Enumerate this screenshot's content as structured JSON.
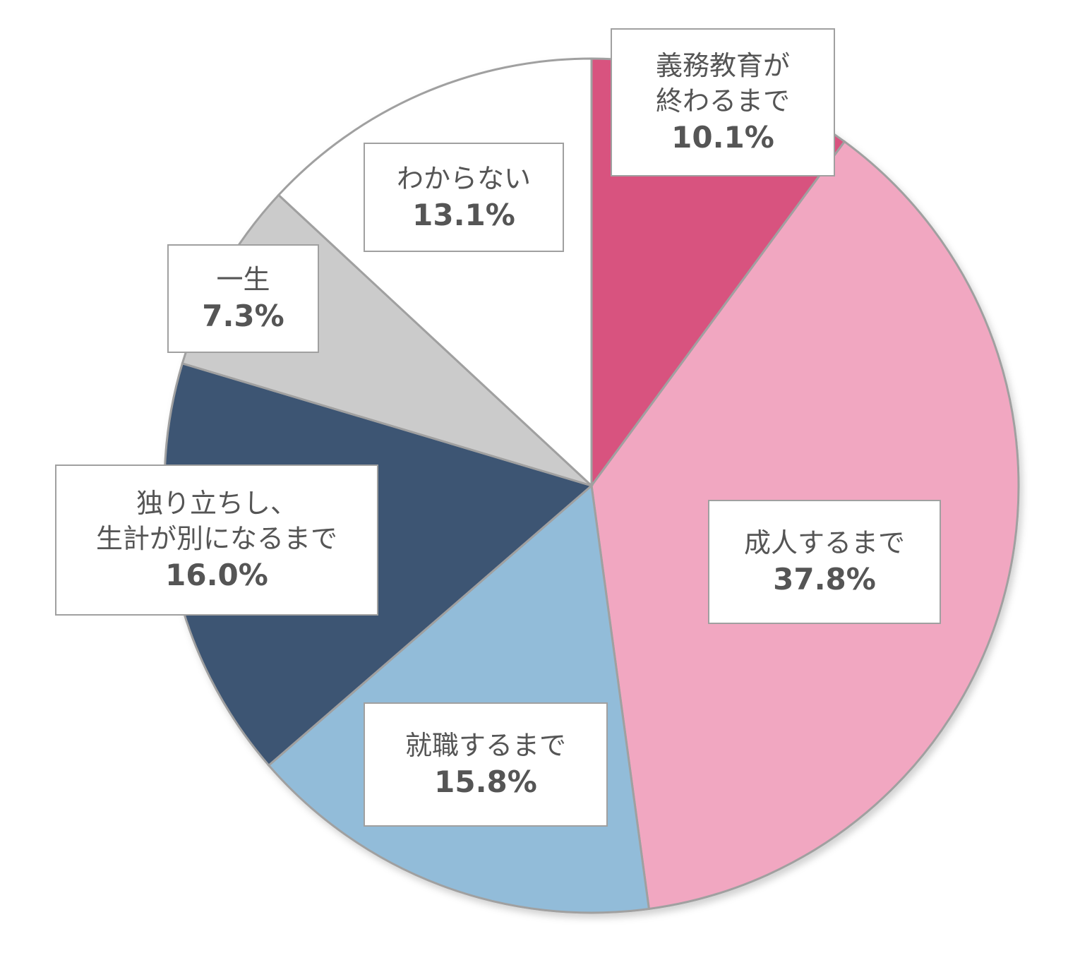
{
  "chart_data": {
    "type": "pie",
    "categories": [
      "義務教育が\n終わるまで",
      "成人するまで",
      "就職するまで",
      "独り立ちし、\n生計が別になるまで",
      "一生",
      "わからない"
    ],
    "values": [
      10.1,
      37.8,
      15.8,
      16.0,
      7.3,
      13.1
    ],
    "value_labels": [
      "10.1%",
      "37.8%",
      "15.8%",
      "16.0%",
      "7.3%",
      "13.1%"
    ],
    "colors": [
      "#d8537f",
      "#f1a7c1",
      "#92bcd9",
      "#3c5473",
      "#cbcbcb",
      "#ffffff"
    ]
  }
}
